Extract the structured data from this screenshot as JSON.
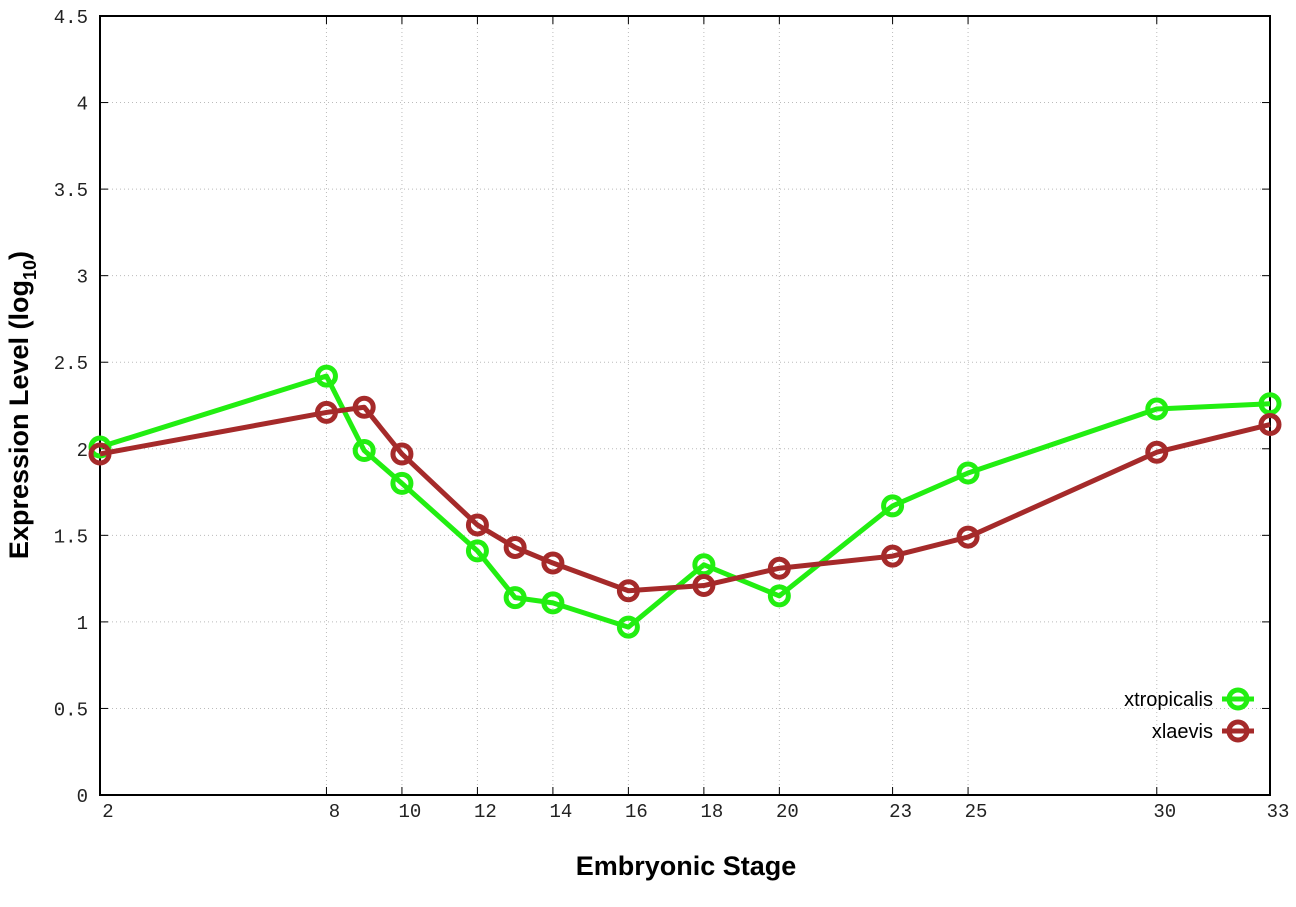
{
  "chart_data": {
    "type": "line",
    "title": "",
    "xlabel": "Embryonic Stage",
    "ylabel_main": "Expression Level (log",
    "ylabel_sub": "10",
    "ylabel_close": ")",
    "xlim": [
      2,
      33
    ],
    "ylim": [
      0,
      4.5
    ],
    "xticks": [
      2,
      8,
      10,
      12,
      14,
      16,
      18,
      20,
      23,
      25,
      30,
      33
    ],
    "yticks": [
      "0",
      "0.5",
      "1",
      "1.5",
      "2",
      "2.5",
      "3",
      "3.5",
      "4",
      "4.5"
    ],
    "grid": true,
    "legend_position": "bottom-right",
    "x": [
      2,
      8,
      9,
      10,
      12,
      13,
      14,
      16,
      18,
      20,
      23,
      25,
      30,
      33
    ],
    "series": [
      {
        "name": "xtropicalis",
        "color": "#22ee11",
        "values": [
          2.01,
          2.42,
          1.99,
          1.8,
          1.41,
          1.14,
          1.11,
          0.97,
          1.33,
          1.15,
          1.67,
          1.86,
          2.23,
          2.26
        ]
      },
      {
        "name": "xlaevis",
        "color": "#a52a2a",
        "values": [
          1.97,
          2.21,
          2.24,
          1.97,
          1.56,
          1.43,
          1.34,
          1.18,
          1.21,
          1.31,
          1.38,
          1.49,
          1.98,
          2.14
        ]
      }
    ]
  }
}
